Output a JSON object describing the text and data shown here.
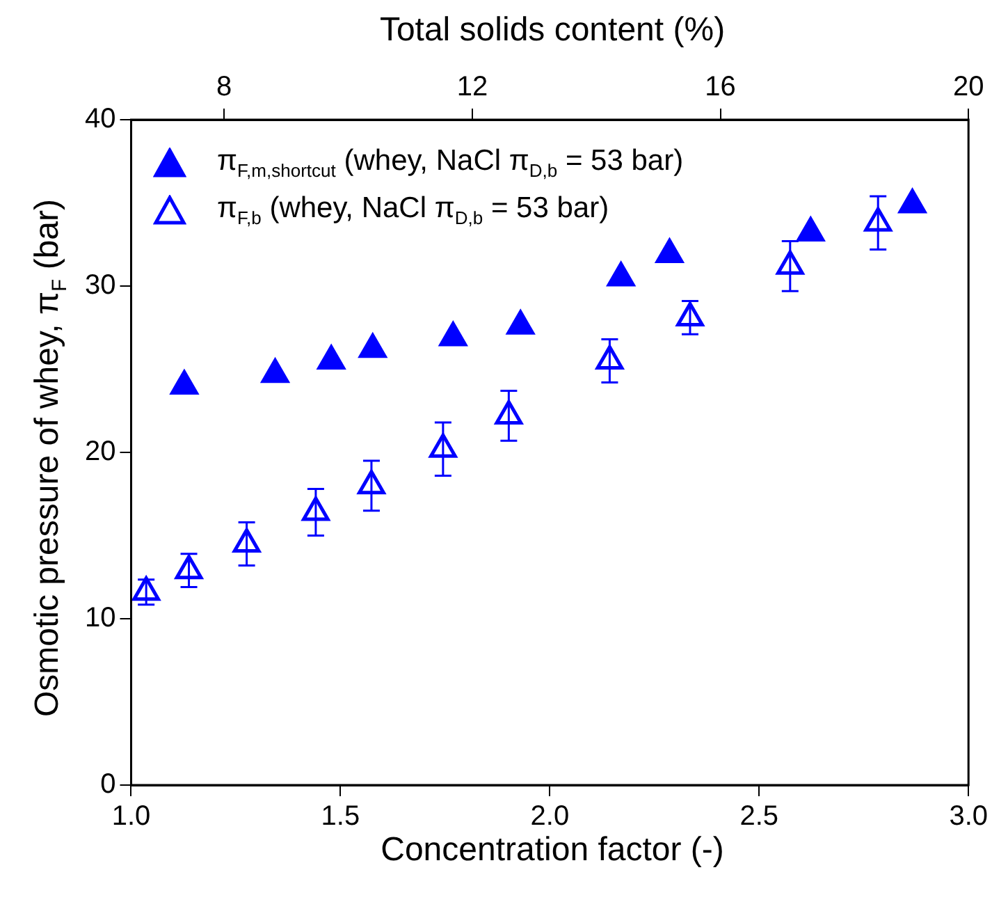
{
  "chart_data": {
    "type": "scatter",
    "xlabel": "Concentration factor (-)",
    "ylabel": "Osmotic pressure of whey, π$_{F}$ (bar)",
    "x2label": "Total solids content (%)",
    "xlim": [
      1.0,
      3.0
    ],
    "xticks": [
      {
        "value": 1,
        "label": "1.0"
      },
      1.5,
      {
        "value": 2,
        "label": "2.0"
      },
      2.5,
      {
        "value": 3,
        "label": "3.0"
      }
    ],
    "ylim": [
      0,
      40
    ],
    "yticks": [
      0,
      10,
      20,
      30,
      40
    ],
    "x2lim": [
      6.5,
      20
    ],
    "x2ticks": [
      8,
      12,
      16,
      20
    ],
    "grid": false,
    "legend": "top left",
    "marker": "triangle",
    "series": [
      {
        "name": "π$_{F,m,shortcut}$ (whey, NaCl  π$_{D,b}$ = 53 bar)",
        "color": "#0000ff",
        "x": [
          1.127,
          1.344,
          1.478,
          1.577,
          1.769,
          1.93,
          2.17,
          2.286,
          2.623,
          2.866
        ],
        "values": [
          24.0,
          24.7,
          25.5,
          26.2,
          26.9,
          27.6,
          30.5,
          31.9,
          33.2,
          34.9
        ]
      },
      {
        "name": "π$_{F,b}$ (whey, NaCl   π$_{D,b}$ = 53 bar)",
        "color": "#0000ff",
        "x": [
          1.036,
          1.138,
          1.276,
          1.441,
          1.574,
          1.745,
          1.902,
          2.143,
          2.335,
          2.574,
          2.784
        ],
        "values": [
          11.6,
          12.9,
          14.5,
          16.4,
          18.0,
          20.2,
          22.2,
          25.5,
          28.1,
          31.2,
          33.8
        ],
        "errors": [
          0.75,
          1.0,
          1.3,
          1.4,
          1.5,
          1.6,
          1.5,
          1.3,
          1.0,
          1.5,
          1.6
        ]
      }
    ]
  }
}
